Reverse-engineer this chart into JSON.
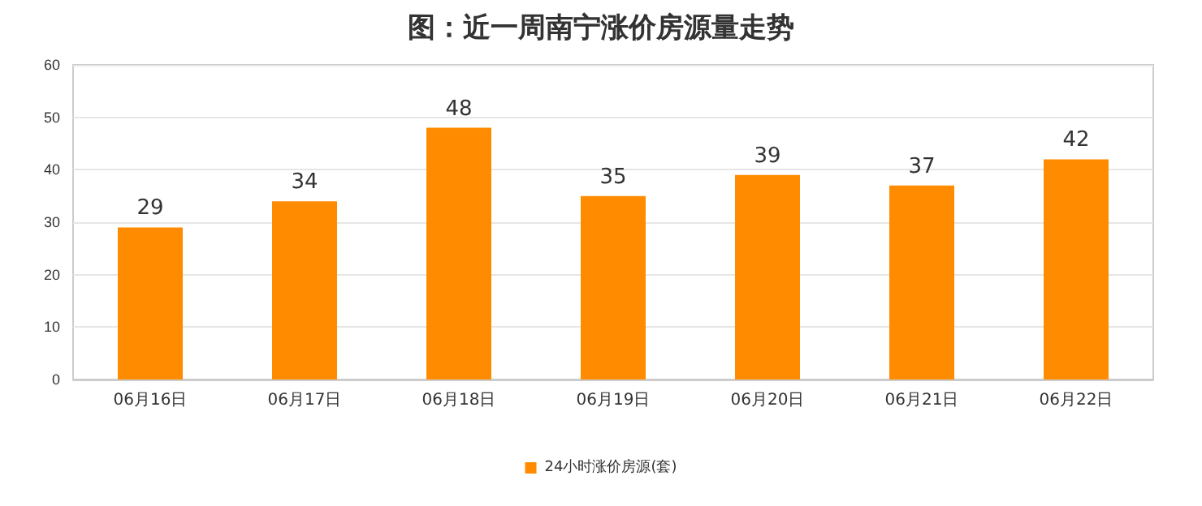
{
  "chart_data": {
    "type": "bar",
    "title": "图：近一周南宁涨价房源量走势",
    "categories": [
      "06月16日",
      "06月17日",
      "06月18日",
      "06月19日",
      "06月20日",
      "06月21日",
      "06月22日"
    ],
    "series": [
      {
        "name": "24小时涨价房源(套)",
        "color": "#ff8c00",
        "values": [
          29,
          34,
          48,
          35,
          39,
          37,
          42
        ]
      }
    ],
    "ylim": [
      0,
      60
    ],
    "yticks": [
      0,
      10,
      20,
      30,
      40,
      50,
      60
    ],
    "grid": "y",
    "legend": "bottom",
    "data_labels": true
  }
}
